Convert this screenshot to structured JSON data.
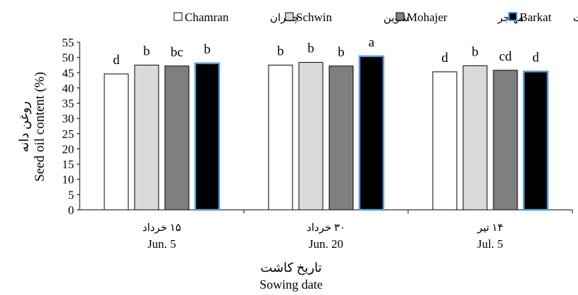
{
  "chart_data": {
    "type": "bar",
    "categories": [
      {
        "fa": "۱۵ خرداد",
        "en": "Jun. 5"
      },
      {
        "fa": "۳۰ خرداد",
        "en": "Jun. 20"
      },
      {
        "fa": "۱۴ تیر",
        "en": "Jul. 5"
      }
    ],
    "series": [
      {
        "name": "Chamran",
        "name_fa": "چمران",
        "fill": "#ffffff",
        "stroke": "#000000",
        "values": [
          44.6,
          47.5,
          45.3
        ],
        "letters": [
          "d",
          "b",
          "d"
        ]
      },
      {
        "name": "Schwin",
        "name_fa": "شوین",
        "fill": "#d9d9d9",
        "stroke": "#000000",
        "values": [
          47.5,
          48.4,
          47.3
        ],
        "letters": [
          "b",
          "b",
          "b"
        ]
      },
      {
        "name": "Mohajer",
        "name_fa": "مهاجر",
        "fill": "#7f7f7f",
        "stroke": "#000000",
        "values": [
          47.2,
          47.2,
          45.8
        ],
        "letters": [
          "bc",
          "b",
          "cd"
        ]
      },
      {
        "name": "Barkat",
        "name_fa": "برکت",
        "fill": "#000000",
        "stroke": "#5b9bd5",
        "values": [
          48.1,
          50.4,
          45.4
        ],
        "letters": [
          "b",
          "a",
          "d"
        ]
      }
    ],
    "ylabel_fa": "روغن دانه",
    "ylabel_en": "Seed oil content (%)",
    "xlabel_fa": "تاریخ کاشت",
    "xlabel_en": "Sowing date",
    "ylim": [
      0,
      55
    ],
    "yticks": [
      0,
      5,
      10,
      15,
      20,
      25,
      30,
      35,
      40,
      45,
      50,
      55
    ],
    "grid": false,
    "legend_position": "top-right"
  }
}
